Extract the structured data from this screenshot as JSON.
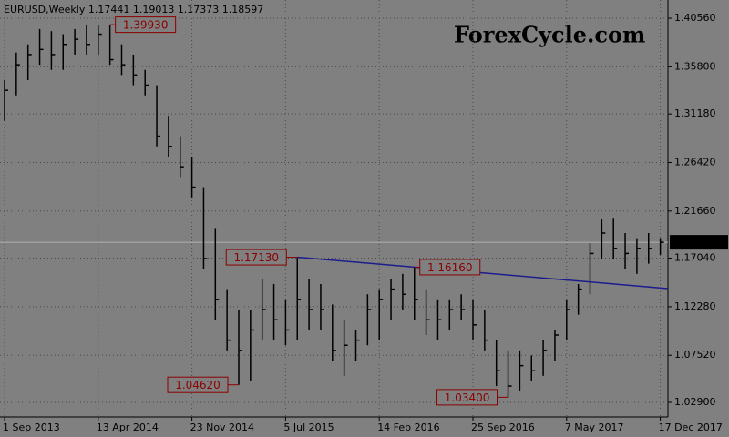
{
  "chart_data": {
    "type": "ohlc",
    "title": "EURUSD,Weekly  1.17441 1.19013 1.17373 1.18597",
    "watermark": "ForexCycle.com",
    "categories": [
      "1 Sep 2013",
      null,
      null,
      null,
      null,
      null,
      null,
      null,
      "13 Apr 2014",
      null,
      null,
      null,
      null,
      null,
      null,
      null,
      "23 Nov 2014",
      null,
      null,
      null,
      null,
      null,
      null,
      null,
      "5 Jul 2015",
      null,
      null,
      null,
      null,
      null,
      null,
      null,
      "14 Feb 2016",
      null,
      null,
      null,
      null,
      null,
      null,
      null,
      "25 Sep 2016",
      null,
      null,
      null,
      null,
      null,
      null,
      null,
      "7 May 2017",
      null,
      null,
      null,
      null,
      null,
      null,
      null,
      "17 Dec 2017"
    ],
    "high": [
      1.345,
      1.372,
      1.38,
      1.395,
      1.393,
      1.39,
      1.395,
      1.399,
      1.399,
      1.3993,
      1.38,
      1.37,
      1.355,
      1.34,
      1.31,
      1.29,
      1.27,
      1.24,
      1.2,
      1.14,
      1.12,
      1.12,
      1.15,
      1.145,
      1.13,
      1.1713,
      1.15,
      1.145,
      1.125,
      1.11,
      1.1,
      1.135,
      1.14,
      1.15,
      1.155,
      1.1616,
      1.14,
      1.13,
      1.13,
      1.135,
      1.13,
      1.12,
      1.09,
      1.08,
      1.08,
      1.075,
      1.09,
      1.1,
      1.13,
      1.145,
      1.185,
      1.2092,
      1.21,
      1.195,
      1.19,
      1.195,
      1.19013
    ],
    "low": [
      1.305,
      1.33,
      1.345,
      1.36,
      1.355,
      1.355,
      1.37,
      1.37,
      1.37,
      1.36,
      1.35,
      1.34,
      1.33,
      1.28,
      1.27,
      1.25,
      1.23,
      1.16,
      1.11,
      1.08,
      1.0462,
      1.05,
      1.09,
      1.09,
      1.085,
      1.09,
      1.1,
      1.1,
      1.07,
      1.055,
      1.07,
      1.085,
      1.09,
      1.11,
      1.12,
      1.11,
      1.095,
      1.09,
      1.1,
      1.11,
      1.09,
      1.08,
      1.045,
      1.034,
      1.04,
      1.05,
      1.055,
      1.07,
      1.09,
      1.115,
      1.135,
      1.17,
      1.17,
      1.16,
      1.155,
      1.165,
      1.17373
    ],
    "close": [
      1.335,
      1.36,
      1.37,
      1.375,
      1.37,
      1.38,
      1.385,
      1.38,
      1.39,
      1.365,
      1.36,
      1.35,
      1.34,
      1.29,
      1.28,
      1.26,
      1.24,
      1.17,
      1.13,
      1.09,
      1.08,
      1.1,
      1.12,
      1.11,
      1.1,
      1.13,
      1.12,
      1.12,
      1.08,
      1.085,
      1.09,
      1.12,
      1.13,
      1.14,
      1.135,
      1.13,
      1.11,
      1.11,
      1.12,
      1.12,
      1.105,
      1.09,
      1.06,
      1.045,
      1.065,
      1.06,
      1.08,
      1.095,
      1.12,
      1.14,
      1.175,
      1.195,
      1.18,
      1.175,
      1.18,
      1.18,
      1.18597
    ],
    "color": "#000000",
    "ylim": [
      1.0147,
      1.4235
    ],
    "yticks": [
      {
        "value": 1.029,
        "label": "1.02900"
      },
      {
        "value": 1.0752,
        "label": "1.07520"
      },
      {
        "value": 1.1228,
        "label": "1.12280"
      },
      {
        "value": 1.1704,
        "label": "1.17040"
      },
      {
        "value": 1.2166,
        "label": "1.21660"
      },
      {
        "value": 1.2642,
        "label": "1.26420"
      },
      {
        "value": 1.3118,
        "label": "1.31180"
      },
      {
        "value": 1.358,
        "label": "1.35800"
      },
      {
        "value": 1.4056,
        "label": "1.40560"
      }
    ],
    "grid": true,
    "annotations": [
      {
        "value": 1.3993,
        "label": "1.39930"
      },
      {
        "value": 1.1713,
        "label": "1.17130"
      },
      {
        "value": 1.1616,
        "label": "1.16160"
      },
      {
        "value": 1.0462,
        "label": "1.04620"
      },
      {
        "value": 1.034,
        "label": "1.03400"
      }
    ],
    "annotation_color": "#8b0000",
    "trendline_color": "#1c1c8c",
    "current_price": {
      "value": 1.18597,
      "label": "1.18597"
    }
  }
}
